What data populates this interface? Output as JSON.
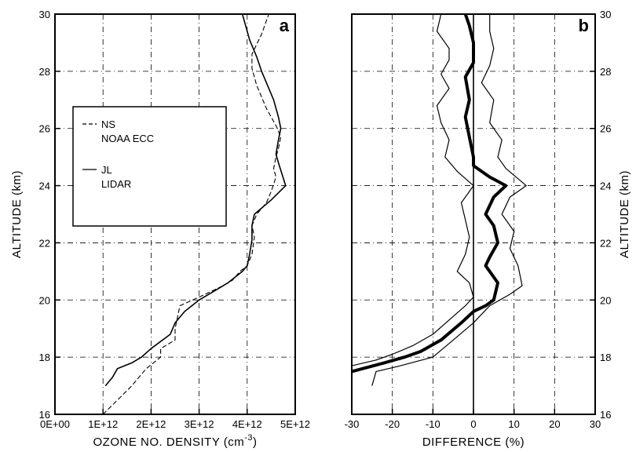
{
  "chart_data": [
    {
      "panel": "a",
      "type": "line",
      "xlabel": "OZONE NO. DENSITY (cm",
      "xlabel_sup": "-3",
      "xlabel_close": ")",
      "ylabel": "ALTITUDE (km)",
      "xlim": [
        0,
        5000000000000.0
      ],
      "ylim": [
        16,
        30
      ],
      "x_ticks": [
        0,
        1000000000000.0,
        2000000000000.0,
        3000000000000.0,
        4000000000000.0,
        5000000000000.0
      ],
      "x_tick_labels": [
        "0E+00",
        "1E+12",
        "2E+12",
        "3E+12",
        "4E+12",
        "5E+12"
      ],
      "y_ticks": [
        16,
        18,
        20,
        22,
        24,
        26,
        28,
        30
      ],
      "y_tick_labels": [
        "16",
        "18",
        "20",
        "22",
        "24",
        "26",
        "28",
        "30"
      ],
      "grid": true,
      "legend": {
        "placement": "middle-left",
        "entries": [
          {
            "line1": "NS",
            "line2": "NOAA ECC",
            "style": "dashed"
          },
          {
            "line1": "JL",
            "line2": "LIDAR",
            "style": "solid"
          }
        ]
      },
      "series": [
        {
          "style": "dashed",
          "points": [
            [
              1000000000000.0,
              16.0
            ],
            [
              1300000000000.0,
              16.5
            ],
            [
              1600000000000.0,
              17.0
            ],
            [
              1700000000000.0,
              17.2
            ],
            [
              1900000000000.0,
              17.6
            ],
            [
              2200000000000.0,
              18.0
            ],
            [
              2200000000000.0,
              18.3
            ],
            [
              2500000000000.0,
              18.6
            ],
            [
              2500000000000.0,
              19.0
            ],
            [
              2550000000000.0,
              19.4
            ],
            [
              2600000000000.0,
              19.8
            ],
            [
              3000000000000.0,
              20.1
            ],
            [
              3500000000000.0,
              20.5
            ],
            [
              3700000000000.0,
              20.7
            ],
            [
              3850000000000.0,
              21.0
            ],
            [
              4000000000000.0,
              21.2
            ],
            [
              4100000000000.0,
              21.6
            ],
            [
              4150000000000.0,
              22.2
            ],
            [
              4100000000000.0,
              22.6
            ],
            [
              4200000000000.0,
              23.0
            ],
            [
              4400000000000.0,
              23.4
            ],
            [
              4500000000000.0,
              23.8
            ],
            [
              4600000000000.0,
              24.3
            ],
            [
              4550000000000.0,
              24.6
            ],
            [
              4600000000000.0,
              25.0
            ],
            [
              4650000000000.0,
              25.3
            ],
            [
              4700000000000.0,
              25.7
            ],
            [
              4600000000000.0,
              26.1
            ],
            [
              4400000000000.0,
              26.7
            ],
            [
              4200000000000.0,
              27.5
            ],
            [
              4100000000000.0,
              28.1
            ],
            [
              4100000000000.0,
              28.6
            ],
            [
              4300000000000.0,
              29.3
            ],
            [
              4450000000000.0,
              30.0
            ]
          ]
        },
        {
          "style": "solid",
          "points": [
            [
              1050000000000.0,
              17.0
            ],
            [
              1200000000000.0,
              17.3
            ],
            [
              1300000000000.0,
              17.6
            ],
            [
              1600000000000.0,
              17.8
            ],
            [
              1800000000000.0,
              18.0
            ],
            [
              2000000000000.0,
              18.3
            ],
            [
              2400000000000.0,
              18.8
            ],
            [
              2500000000000.0,
              19.2
            ],
            [
              2700000000000.0,
              19.6
            ],
            [
              3000000000000.0,
              20.0
            ],
            [
              3300000000000.0,
              20.3
            ],
            [
              3600000000000.0,
              20.6
            ],
            [
              3900000000000.0,
              21.0
            ],
            [
              4000000000000.0,
              21.2
            ],
            [
              4050000000000.0,
              21.6
            ],
            [
              4100000000000.0,
              22.1
            ],
            [
              4100000000000.0,
              22.6
            ],
            [
              4150000000000.0,
              23.0
            ],
            [
              4500000000000.0,
              23.5
            ],
            [
              4800000000000.0,
              24.0
            ],
            [
              4650000000000.0,
              24.8
            ],
            [
              4600000000000.0,
              25.1
            ],
            [
              4650000000000.0,
              25.6
            ],
            [
              4700000000000.0,
              26.0
            ],
            [
              4650000000000.0,
              26.4
            ],
            [
              4550000000000.0,
              27.0
            ],
            [
              4400000000000.0,
              27.6
            ],
            [
              4300000000000.0,
              28.0
            ],
            [
              4200000000000.0,
              28.5
            ],
            [
              4050000000000.0,
              29.1
            ],
            [
              3900000000000.0,
              30.0
            ]
          ]
        }
      ]
    },
    {
      "panel": "b",
      "type": "line",
      "xlabel": "DIFFERENCE (%)",
      "ylabel": "ALTITUDE (km)",
      "xlim": [
        -30,
        30
      ],
      "ylim": [
        16,
        30
      ],
      "x_ticks": [
        -30,
        -20,
        -10,
        0,
        10,
        20,
        30
      ],
      "x_tick_labels": [
        "-30",
        "-20",
        "-10",
        "0",
        "10",
        "20",
        "30"
      ],
      "y_ticks": [
        16,
        18,
        20,
        22,
        24,
        26,
        28,
        30
      ],
      "y_tick_labels": [
        "16",
        "18",
        "20",
        "22",
        "24",
        "26",
        "28",
        "30"
      ],
      "grid": true,
      "reference_line_x": 0,
      "series": [
        {
          "style": "thick",
          "points": [
            [
              -30,
              17.5
            ],
            [
              -22,
              17.8
            ],
            [
              -17,
              18.0
            ],
            [
              -13,
              18.2
            ],
            [
              -8,
              18.6
            ],
            [
              -3,
              19.2
            ],
            [
              0,
              19.6
            ],
            [
              3,
              19.8
            ],
            [
              5,
              20.0
            ],
            [
              6,
              20.6
            ],
            [
              3,
              21.2
            ],
            [
              4,
              21.5
            ],
            [
              6,
              22.0
            ],
            [
              5,
              22.6
            ],
            [
              3,
              23.0
            ],
            [
              5,
              23.6
            ],
            [
              8,
              24.0
            ],
            [
              4,
              24.3
            ],
            [
              0,
              24.7
            ],
            [
              0,
              25.0
            ],
            [
              -1,
              25.7
            ],
            [
              -2,
              26.4
            ],
            [
              -1,
              27.0
            ],
            [
              -2,
              27.8
            ],
            [
              0,
              28.3
            ],
            [
              0,
              29.0
            ],
            [
              -1,
              29.6
            ],
            [
              -2,
              30.0
            ]
          ]
        },
        {
          "style": "thin",
          "points": [
            [
              -25,
              17.0
            ],
            [
              -24,
              17.5
            ],
            [
              -18,
              17.7
            ],
            [
              -10,
              18.0
            ],
            [
              -5,
              18.6
            ],
            [
              0,
              19.2
            ],
            [
              4,
              19.8
            ],
            [
              9,
              20.2
            ],
            [
              12,
              20.5
            ],
            [
              11,
              21.2
            ],
            [
              9,
              21.8
            ],
            [
              10,
              22.4
            ],
            [
              7,
              23.0
            ],
            [
              9,
              23.6
            ],
            [
              13,
              24.0
            ],
            [
              8,
              24.6
            ],
            [
              6,
              25.0
            ],
            [
              7,
              25.6
            ],
            [
              4,
              26.2
            ],
            [
              5,
              27.0
            ],
            [
              2,
              27.6
            ],
            [
              4,
              28.2
            ],
            [
              5,
              28.8
            ],
            [
              4,
              29.4
            ],
            [
              4,
              30.0
            ]
          ]
        },
        {
          "style": "thin",
          "points": [
            [
              -30,
              17.7
            ],
            [
              -24,
              17.9
            ],
            [
              -20,
              18.1
            ],
            [
              -15,
              18.4
            ],
            [
              -10,
              18.8
            ],
            [
              -6,
              19.3
            ],
            [
              -2,
              19.8
            ],
            [
              0,
              20.1
            ],
            [
              -1,
              20.6
            ],
            [
              -4,
              21.0
            ],
            [
              -2,
              21.6
            ],
            [
              -1,
              22.2
            ],
            [
              -2,
              22.8
            ],
            [
              -3,
              23.4
            ],
            [
              0,
              24.0
            ],
            [
              -4,
              24.5
            ],
            [
              -7,
              25.0
            ],
            [
              -6,
              25.6
            ],
            [
              -8,
              26.2
            ],
            [
              -9,
              26.8
            ],
            [
              -6,
              27.4
            ],
            [
              -8,
              27.9
            ],
            [
              -6,
              28.4
            ],
            [
              -6,
              28.8
            ],
            [
              -9,
              29.4
            ],
            [
              -8,
              30.0
            ]
          ]
        }
      ]
    }
  ],
  "panels": {
    "a": {
      "letter": "a"
    },
    "b": {
      "letter": "b"
    }
  }
}
